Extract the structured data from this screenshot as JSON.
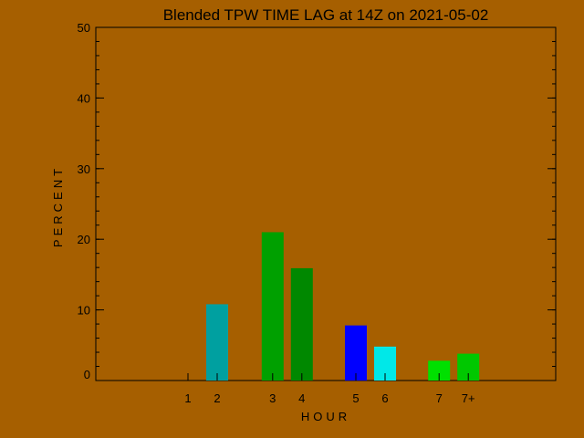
{
  "colors": {
    "background": "#a65f00",
    "axes": "#000000"
  },
  "chart_data": {
    "type": "bar",
    "title": "Blended TPW TIME LAG at 14Z on 2021-05-02",
    "xlabel": "HOUR",
    "ylabel": "PERCENT",
    "ylim": [
      0,
      50
    ],
    "yticks": [
      "0",
      "10",
      "20",
      "30",
      "40",
      "50"
    ],
    "grid": false,
    "legend": "none",
    "bars": [
      {
        "label": "1",
        "x": 1,
        "value": 0,
        "color": "#00a000"
      },
      {
        "label": "2",
        "x": 2,
        "value": 10.8,
        "color": "#00a0a0"
      },
      {
        "label": "3",
        "x": 3.9,
        "value": 21,
        "color": "#00a000"
      },
      {
        "label": "4",
        "x": 4.9,
        "value": 15.9,
        "color": "#008800"
      },
      {
        "label": "5",
        "x": 6.75,
        "value": 7.8,
        "color": "#0000ff"
      },
      {
        "label": "6",
        "x": 7.75,
        "value": 4.8,
        "color": "#00e8e8"
      },
      {
        "label": "7",
        "x": 9.6,
        "value": 2.8,
        "color": "#00e000"
      },
      {
        "label": "7+",
        "x": 10.6,
        "value": 3.8,
        "color": "#00c800"
      }
    ]
  }
}
